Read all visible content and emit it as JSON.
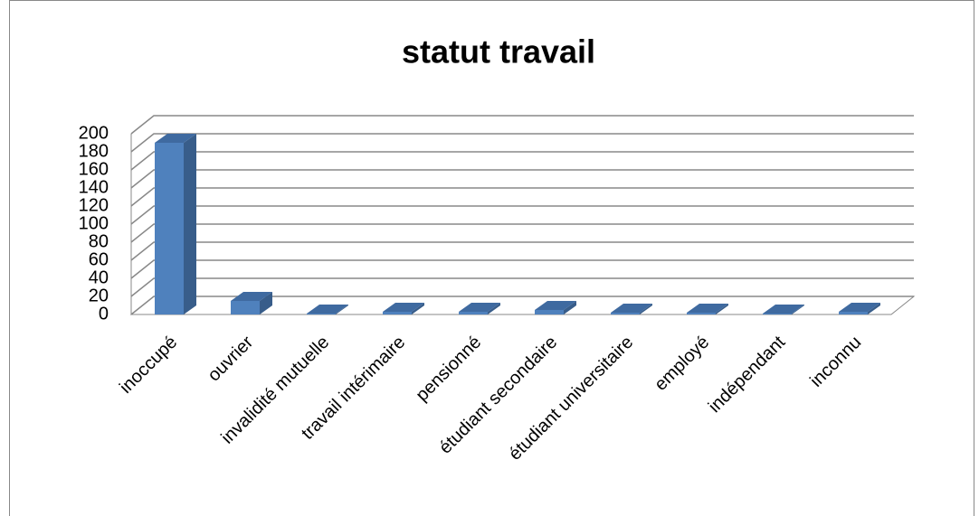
{
  "chart_data": {
    "type": "bar3d",
    "title": "statut travail",
    "categories": [
      "inoccupé",
      "ouvrier",
      "invalidité mutuelle",
      "travail intérimaire",
      "pensionné",
      "étudiant secondaire",
      "étudiant universitaire",
      "employé",
      "indépendant",
      "inconnu"
    ],
    "values": [
      190,
      15,
      1,
      3,
      3,
      5,
      2,
      2,
      1,
      3
    ],
    "color": "#4f81bd",
    "ylim": [
      0,
      200
    ],
    "yticks": [
      0,
      20,
      40,
      60,
      80,
      100,
      120,
      140,
      160,
      180,
      200
    ],
    "grid": true
  }
}
